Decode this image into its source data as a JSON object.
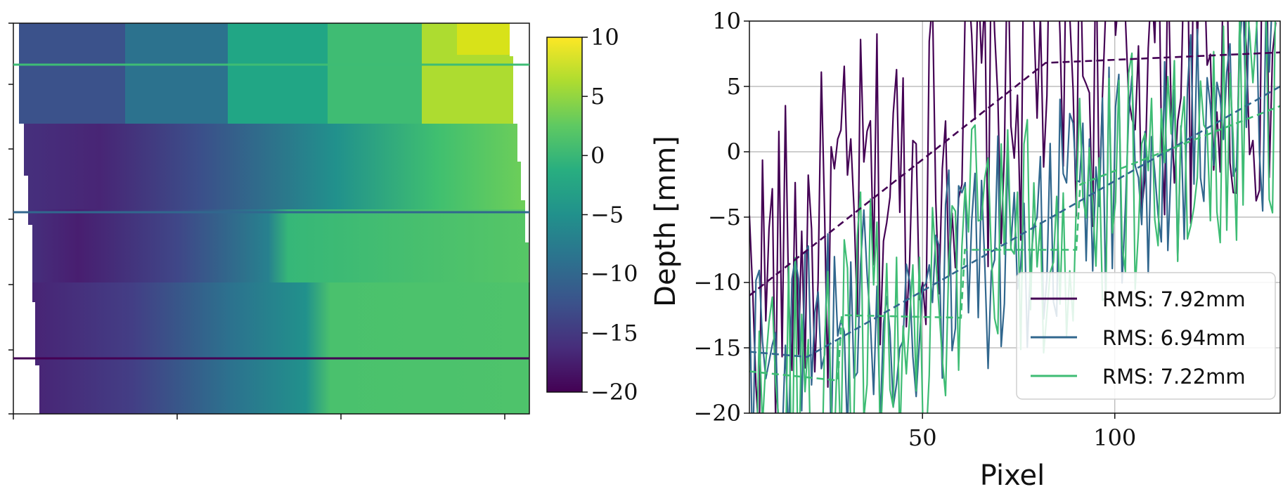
{
  "chart_data": [
    {
      "type": "heatmap",
      "colormap": "viridis",
      "colorbar": {
        "range": [
          -20,
          10
        ],
        "ticks": [
          10,
          5,
          0,
          -5,
          -10,
          -15,
          -20
        ]
      },
      "profile_lines": [
        {
          "color": "#3ebc74",
          "series": "RMS: 7.22mm"
        },
        {
          "color": "#31678e",
          "series": "RMS: 6.94mm"
        },
        {
          "color": "#440154",
          "series": "RMS: 7.92mm"
        }
      ],
      "grid": false
    },
    {
      "type": "line",
      "xlabel": "Pixel",
      "ylabel": "Depth [mm]",
      "xlim": [
        5,
        143
      ],
      "ylim": [
        -20,
        10
      ],
      "xticks": [
        50,
        100
      ],
      "yticks": [
        10,
        5,
        0,
        -5,
        -10,
        -15,
        -20
      ],
      "grid": true,
      "legend_position": "bottom-right",
      "series": [
        {
          "name": "RMS: 7.92mm",
          "color": "#440154",
          "fit_x": [
            5,
            82,
            143
          ],
          "fit_y": [
            -11,
            6.8,
            7.6
          ]
        },
        {
          "name": "RMS: 6.94mm",
          "color": "#31678e",
          "fit_x": [
            5,
            20,
            143
          ],
          "fit_y": [
            -15.3,
            -15.7,
            5
          ]
        },
        {
          "name": "RMS: 7.22mm",
          "color": "#3ebc74",
          "fit_x": [
            5,
            28,
            29,
            60,
            61,
            90,
            91,
            143
          ],
          "fit_y": [
            -16.8,
            -17.5,
            -12.5,
            -12.7,
            -7.5,
            -7.5,
            -2.5,
            3.5
          ]
        }
      ]
    }
  ]
}
